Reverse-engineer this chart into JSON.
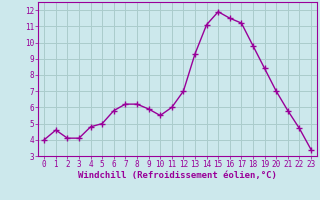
{
  "x": [
    0,
    1,
    2,
    3,
    4,
    5,
    6,
    7,
    8,
    9,
    10,
    11,
    12,
    13,
    14,
    15,
    16,
    17,
    18,
    19,
    20,
    21,
    22,
    23
  ],
  "y": [
    4.0,
    4.6,
    4.1,
    4.1,
    4.8,
    5.0,
    5.8,
    6.2,
    6.2,
    5.9,
    5.5,
    6.0,
    7.0,
    9.3,
    11.1,
    11.9,
    11.5,
    11.2,
    9.8,
    8.4,
    7.0,
    5.8,
    4.7,
    3.4
  ],
  "line_color": "#990099",
  "marker": "+",
  "marker_size": 4,
  "marker_lw": 1.0,
  "bg_color": "#cce8ec",
  "grid_color": "#aacccc",
  "xlabel": "Windchill (Refroidissement éolien,°C)",
  "xlabel_color": "#990099",
  "tick_color": "#990099",
  "ylim": [
    3,
    12.5
  ],
  "xlim": [
    -0.5,
    23.5
  ],
  "yticks": [
    3,
    4,
    5,
    6,
    7,
    8,
    9,
    10,
    11,
    12
  ],
  "xticks": [
    0,
    1,
    2,
    3,
    4,
    5,
    6,
    7,
    8,
    9,
    10,
    11,
    12,
    13,
    14,
    15,
    16,
    17,
    18,
    19,
    20,
    21,
    22,
    23
  ],
  "label_fontsize": 6.5,
  "tick_fontsize": 5.5,
  "line_width": 1.0
}
